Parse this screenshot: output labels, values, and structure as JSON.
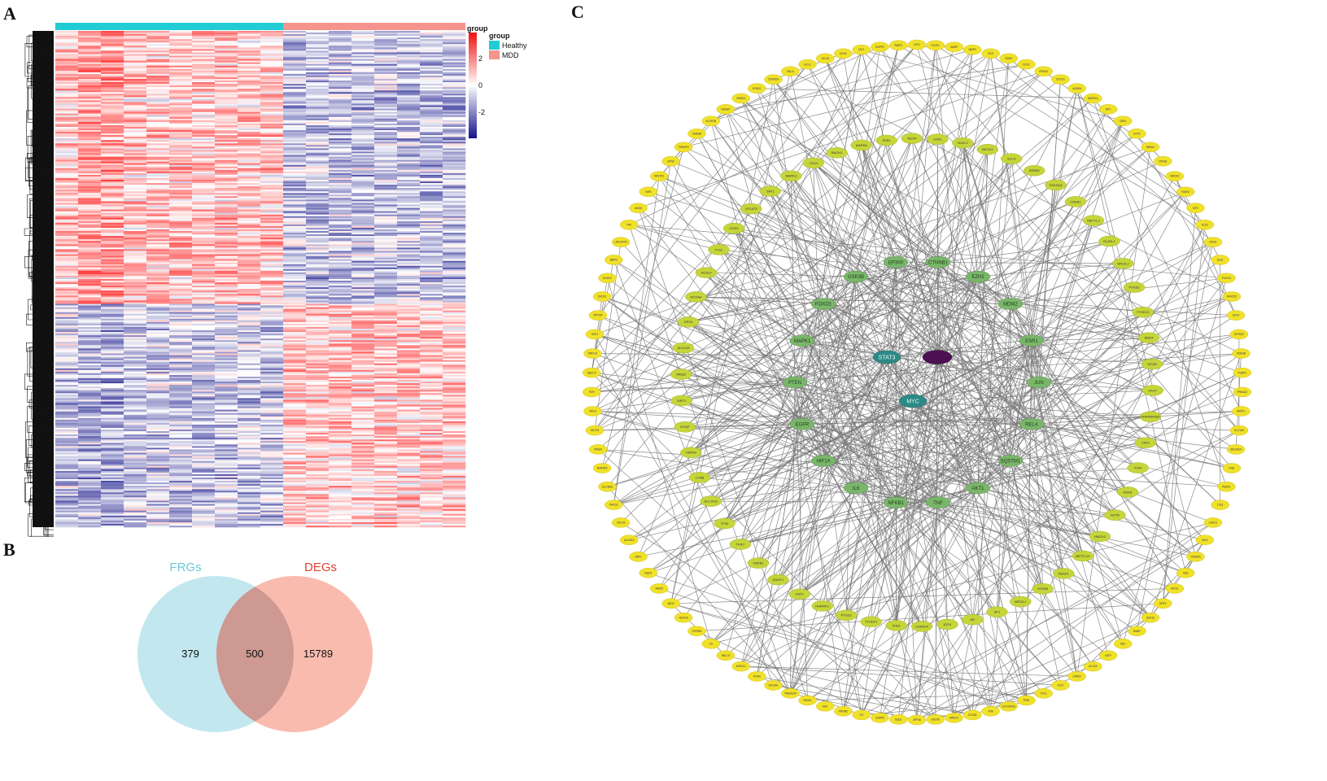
{
  "panels": {
    "a": {
      "letter": "A"
    },
    "b": {
      "letter": "B"
    },
    "c": {
      "letter": "C"
    }
  },
  "heatmap": {
    "legend": {
      "title": "group",
      "groups": [
        {
          "label": "Healthy",
          "color": "#22ccd4"
        },
        {
          "label": "MDD",
          "color": "#f4948c"
        }
      ],
      "scale_ticks": [
        "2",
        "0",
        "-2"
      ],
      "scale_colors": {
        "high": "#ee1111",
        "mid": "#ffffff",
        "low": "#12128c"
      }
    },
    "samples": {
      "healthy": 10,
      "mdd": 8
    }
  },
  "venn": {
    "sets": [
      {
        "label": "FRGs",
        "color": "#6ec6d9",
        "fill": "#b7e3ec"
      },
      {
        "label": "DEGs",
        "color": "#e0412f",
        "fill": "#f8a899"
      }
    ],
    "counts": {
      "frgs_only": "379",
      "both": "500",
      "degs_only": "15789"
    }
  },
  "network": {
    "center_labels": [
      "STAT3",
      "MYC"
    ],
    "inner_labels": [
      "EP300",
      "CTNNB1",
      "EZH2",
      "MDM2",
      "ESR1",
      "JUN",
      "RELA",
      "SQSTM1",
      "AKT1",
      "TNF",
      "NFKB1",
      "IL6",
      "HIF1A",
      "EGFR",
      "PTEN",
      "MAPK1",
      "FOXO1",
      "GSK3B"
    ],
    "middle_labels": [
      "CDK1",
      "VDAC1",
      "BECN1",
      "SCLD",
      "ERBB2",
      "CDKN1A",
      "CREB1",
      "METTL3",
      "ELAVL1",
      "NFE2L2",
      "PTGS2",
      "YTHDC1",
      "BRD4",
      "MTOR",
      "ATG7",
      "HNRNPA2B1",
      "CAV1",
      "TLR4",
      "KRAS",
      "ACTB",
      "HMOX1",
      "METTL14",
      "KEAP1",
      "HSPA5",
      "NFE2L1",
      "SP1",
      "AR",
      "ATF4",
      "CDKN2A",
      "IFNG",
      "YTHDF1",
      "PTGS2",
      "HNRNPC",
      "KAT2",
      "DNMT1",
      "HSPB1",
      "TFRC",
      "TP53",
      "SLC7A11",
      "CYBB",
      "HSPA9",
      "WTAP",
      "SIRT1",
      "IREB2",
      "ALOX15",
      "GPX4",
      "NCOA4",
      "ACSL4",
      "FTH1",
      "CISD1",
      "LPCAT3",
      "SAT1",
      "MAPK3",
      "CD44",
      "BACH1",
      "MAPK8",
      "ZEB1",
      "NOX4"
    ],
    "outer_labels": [
      "ATF2",
      "FOXP1",
      "HAMP",
      "MMP2",
      "SCD",
      "DDR2",
      "CDO1",
      "PRDX6",
      "SOCS1",
      "AURKA",
      "MAPK14",
      "HPX",
      "CBR1",
      "GOT1",
      "NR5A2",
      "CPEB1",
      "HMOX2",
      "FADS2",
      "EIF2",
      "GLS2",
      "NOS2",
      "ULK1",
      "FOXO4",
      "FANCD2",
      "GCH1",
      "ATP5G3",
      "KDM3B",
      "PCBP2",
      "PRKAA2",
      "ARNTL",
      "SLC1A5",
      "SELENOI",
      "PGD",
      "PEBP1",
      "LIG3",
      "CHAC1",
      "IDH1",
      "TXNRD1",
      "CBS",
      "MT1G",
      "DPP4",
      "GDF15",
      "NNMT",
      "SRC",
      "USP7",
      "ALOX5",
      "CARS1",
      "KLF2",
      "TSC1",
      "TP63",
      "LINC00336",
      "ATM",
      "OTUB1",
      "MIR137",
      "EGLN2",
      "ZFP36",
      "SQLE",
      "CHMP5",
      "FH",
      "PROM2",
      "RB1",
      "PANX1",
      "TMEM164",
      "DHODH",
      "PLIN4",
      "AKR1C1",
      "HELLS",
      "CS",
      "ZFP69B",
      "HILPDA",
      "MIOX",
      "AIFM2",
      "NQO1",
      "NRF1",
      "ALOXE3",
      "CDCA3",
      "PHKG2",
      "SLC38A1",
      "MAP3K5",
      "MDM4",
      "MLST8",
      "RPL8",
      "POR",
      "ABCC5",
      "PRKCA",
      "HSF1",
      "RPTOR",
      "DUOX1",
      "DUOX2",
      "BNIP3",
      "LINC00472",
      "PIR",
      "ANO6",
      "YAP1",
      "WWTR1",
      "MFN2",
      "TNFAIP3",
      "KDM6B",
      "ACVR1B",
      "FBXW7",
      "NEDD4",
      "EPAS1",
      "CDKN2A",
      "SNCA",
      "GCLC",
      "GCLM",
      "CHUK",
      "HIC1",
      "ENPP2",
      "PARP1"
    ]
  }
}
